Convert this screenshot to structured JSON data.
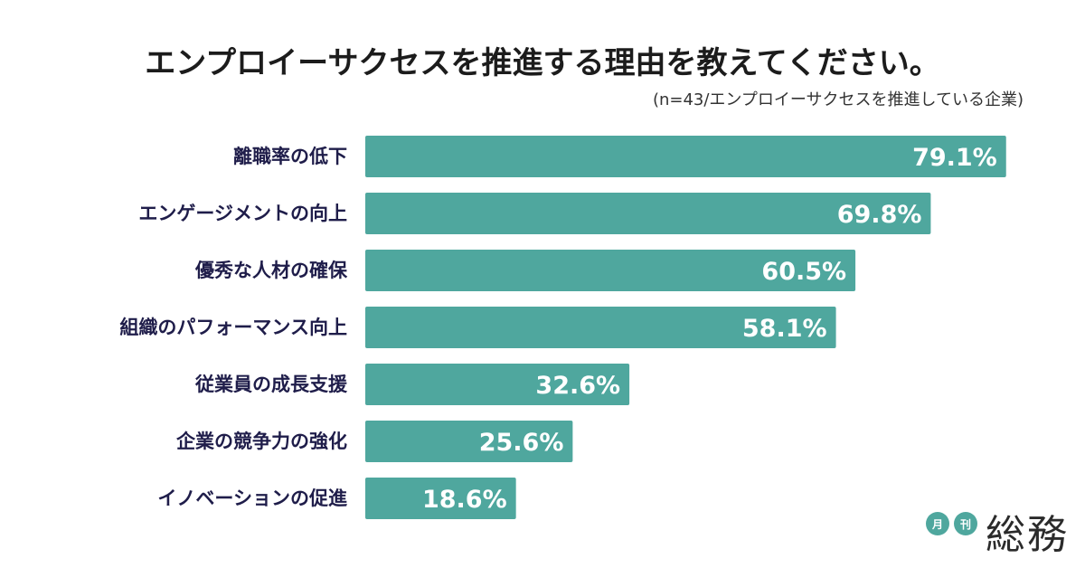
{
  "chart_data": {
    "type": "bar",
    "orientation": "horizontal",
    "title": "エンプロイーサクセスを推進する理由を教えてください。",
    "subtitle": "(n=43/エンプロイーサクセスを推進している企業)",
    "categories": [
      "離職率の低下",
      "エンゲージメントの向上",
      "優秀な人材の確保",
      "組織のパフォーマンス向上",
      "従業員の成長支援",
      "企業の競争力の強化",
      "イノベーションの促進"
    ],
    "values": [
      79.1,
      69.8,
      60.5,
      58.1,
      32.6,
      25.6,
      18.6
    ],
    "value_labels": [
      "79.1%",
      "69.8%",
      "60.5%",
      "58.1%",
      "32.6%",
      "25.6%",
      "18.6%"
    ],
    "unit": "%",
    "xlim": [
      0,
      100
    ],
    "grid": false,
    "legend": "none",
    "bar_color": "#4fa79e"
  },
  "brand": {
    "badge_1": "月",
    "badge_2": "刊",
    "name": "総務"
  }
}
